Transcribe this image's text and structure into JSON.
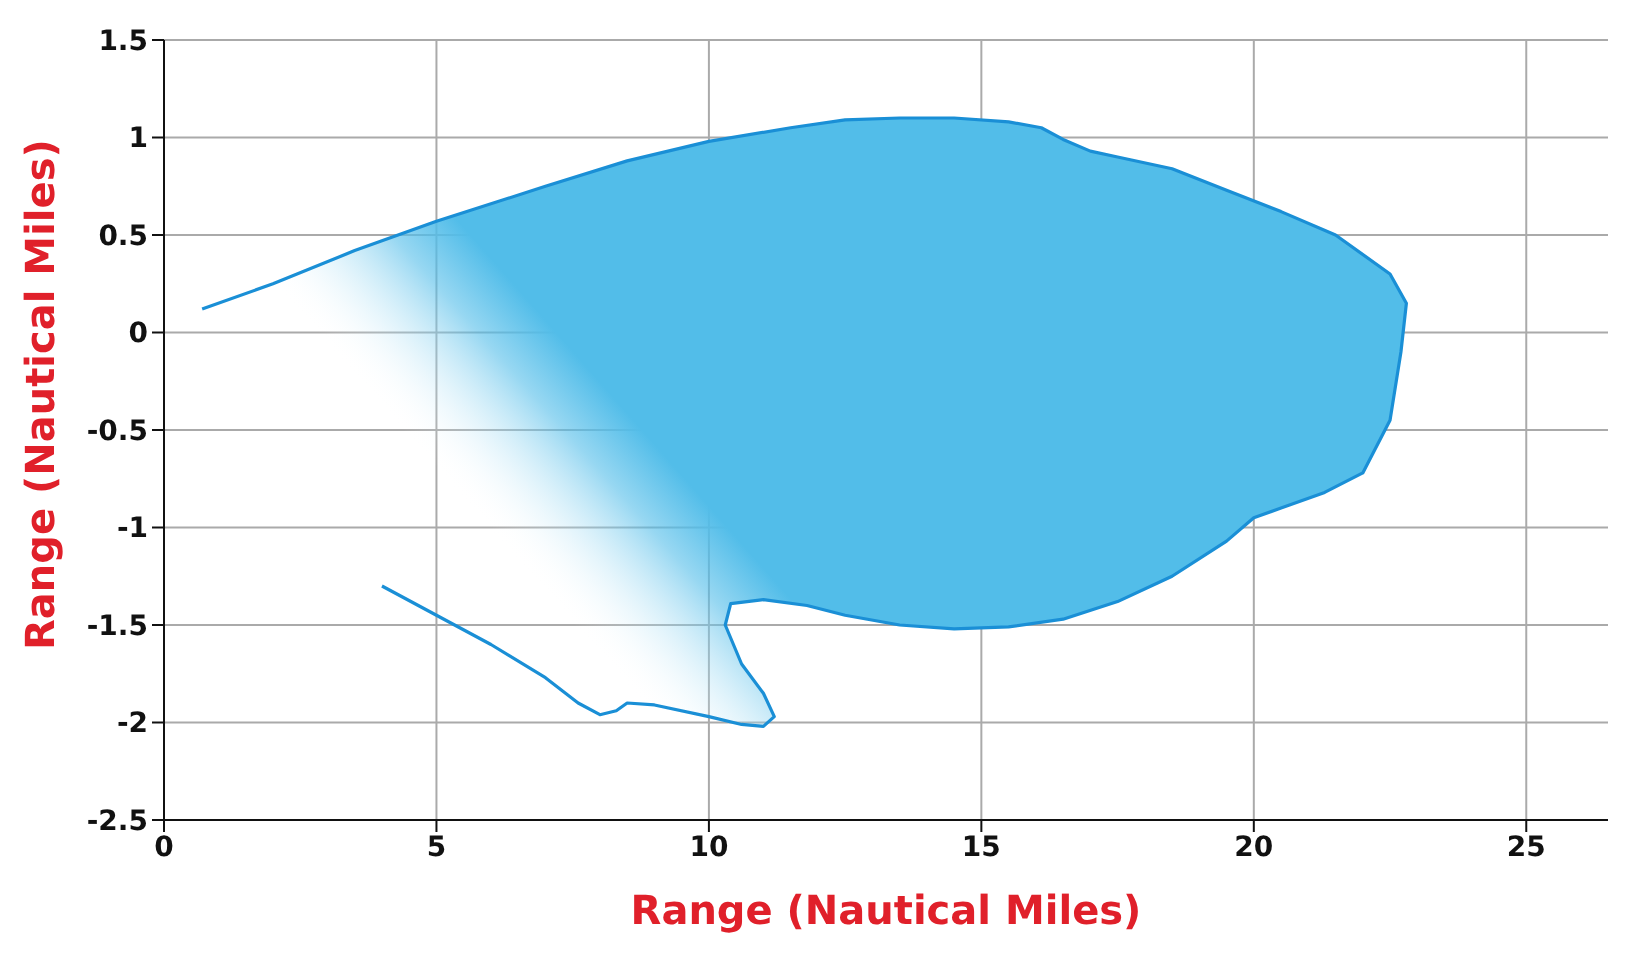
{
  "chart_data": {
    "type": "line",
    "xlabel": "Range (Nautical Miles)",
    "ylabel": "Range (Nautical Miles)",
    "xlim": [
      0,
      26.5
    ],
    "xticks": [
      0,
      5,
      10,
      15,
      20,
      25
    ],
    "ylim": [
      -2.5,
      1.5
    ],
    "yticks": [
      -2.5,
      -2,
      -1.5,
      -1,
      -0.5,
      0,
      0.5,
      1,
      1.5
    ],
    "grid": true,
    "series": [
      {
        "color": "#1a8fd6",
        "x": [
          4,
          5,
          6,
          7,
          7.6,
          8,
          8.3,
          8.5,
          9,
          10,
          10.6,
          11,
          11.2,
          11,
          10.6,
          10.3,
          10.4,
          11,
          11.8,
          12.5,
          13.5,
          14.5,
          15.5,
          16.5,
          17.5,
          18.5,
          19.5,
          20,
          20.5,
          21.3,
          22,
          22.5,
          22.7,
          22.8,
          22.5,
          21.5,
          20.5,
          19.5,
          18.5,
          17.5,
          17,
          16.5,
          16.1,
          15.5,
          14.5,
          13.5,
          12.5,
          11.5,
          10,
          8.5,
          7,
          5,
          3.5,
          2,
          0.7
        ],
        "values": [
          -1.3,
          -1.45,
          -1.6,
          -1.77,
          -1.9,
          -1.96,
          -1.94,
          -1.9,
          -1.91,
          -1.97,
          -2.01,
          -2.02,
          -1.97,
          -1.85,
          -1.7,
          -1.5,
          -1.39,
          -1.37,
          -1.4,
          -1.45,
          -1.5,
          -1.52,
          -1.51,
          -1.47,
          -1.38,
          -1.25,
          -1.07,
          -0.95,
          -0.9,
          -0.82,
          -0.72,
          -0.45,
          -0.1,
          0.15,
          0.3,
          0.5,
          0.62,
          0.73,
          0.84,
          0.9,
          0.93,
          0.99,
          1.05,
          1.08,
          1.1,
          1.1,
          1.09,
          1.05,
          0.98,
          0.88,
          0.75,
          0.57,
          0.42,
          0.25,
          0.12
        ]
      }
    ]
  }
}
